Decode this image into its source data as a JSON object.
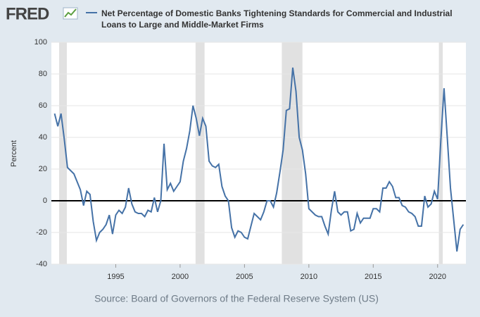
{
  "logo": "FRED",
  "chart_data": {
    "type": "line",
    "title": "Net Percentage of Domestic Banks Tightening Standards for Commercial and Industrial Loans to Large and Middle-Market Firms",
    "ylabel": "Percent",
    "source": "Source: Board of Governors of the Federal Reserve System (US)",
    "xlim": [
      1990,
      2022.2
    ],
    "xticks": [
      1995,
      2000,
      2005,
      2010,
      2015,
      2020
    ],
    "ylim": [
      -40,
      100
    ],
    "yticks": [
      -40,
      -20,
      0,
      20,
      40,
      60,
      80,
      100
    ],
    "grid": true,
    "recessions": [
      [
        1990.6,
        1991.2
      ],
      [
        2001.2,
        2001.9
      ],
      [
        2007.9,
        2009.5
      ],
      [
        2020.1,
        2020.4
      ]
    ],
    "x": [
      1990.25,
      1990.5,
      1990.75,
      1991,
      1991.25,
      1991.5,
      1991.75,
      1992,
      1992.25,
      1992.5,
      1992.75,
      1993,
      1993.25,
      1993.5,
      1993.75,
      1994,
      1994.25,
      1994.5,
      1994.75,
      1995,
      1995.25,
      1995.5,
      1995.75,
      1996,
      1996.25,
      1996.5,
      1996.75,
      1997,
      1997.25,
      1997.5,
      1997.75,
      1998,
      1998.25,
      1998.5,
      1998.75,
      1999,
      1999.25,
      1999.5,
      1999.75,
      2000,
      2000.25,
      2000.5,
      2000.75,
      2001,
      2001.25,
      2001.5,
      2001.75,
      2002,
      2002.25,
      2002.5,
      2002.75,
      2003,
      2003.25,
      2003.5,
      2003.75,
      2004,
      2004.25,
      2004.5,
      2004.75,
      2005,
      2005.25,
      2005.5,
      2005.75,
      2006,
      2006.25,
      2006.5,
      2006.75,
      2007,
      2007.25,
      2007.5,
      2007.75,
      2008,
      2008.25,
      2008.5,
      2008.75,
      2009,
      2009.25,
      2009.5,
      2009.75,
      2010,
      2010.25,
      2010.5,
      2010.75,
      2011,
      2011.25,
      2011.5,
      2011.75,
      2012,
      2012.25,
      2012.5,
      2012.75,
      2013,
      2013.25,
      2013.5,
      2013.75,
      2014,
      2014.25,
      2014.5,
      2014.75,
      2015,
      2015.25,
      2015.5,
      2015.75,
      2016,
      2016.25,
      2016.5,
      2016.75,
      2017,
      2017.25,
      2017.5,
      2017.75,
      2018,
      2018.25,
      2018.5,
      2018.75,
      2019,
      2019.25,
      2019.5,
      2019.75,
      2020,
      2020.25,
      2020.5,
      2020.75,
      2021,
      2021.25,
      2021.5,
      2021.75,
      2022
    ],
    "series": [
      {
        "name": "Net Percentage of Domestic Banks Tightening Standards for Commercial and Industrial Loans to Large and Middle-Market Firms",
        "color": "#4572a7",
        "values": [
          55,
          47,
          55,
          39,
          21,
          19,
          17,
          12,
          7,
          -3,
          6,
          4,
          -13,
          -25,
          -20,
          -18,
          -15,
          -9,
          -21,
          -9,
          -6,
          -8,
          -4,
          8,
          -2,
          -7,
          -8,
          -8,
          -10,
          -6,
          -7,
          2,
          -7,
          0,
          36,
          7,
          11,
          6,
          9,
          12,
          25,
          33,
          44,
          60,
          52,
          41,
          52,
          47,
          25,
          22,
          21,
          23,
          9,
          3,
          0,
          -17,
          -23,
          -19,
          -20,
          -23,
          -24,
          -16,
          -8,
          -10,
          -12,
          -7,
          0,
          0,
          -4,
          5,
          18,
          32,
          57,
          58,
          84,
          69,
          40,
          32,
          17,
          -5,
          -7,
          -9,
          -10,
          -10,
          -16,
          -21,
          -6,
          6,
          -7,
          -9,
          -7,
          -7,
          -19,
          -18,
          -8,
          -14,
          -11,
          -11,
          -11,
          -5,
          -5,
          -7,
          8,
          8,
          12,
          9,
          2,
          2,
          -3,
          -4,
          -7,
          -8,
          -10,
          -16,
          -16,
          3,
          -4,
          -2,
          6,
          1,
          38,
          71,
          40,
          8,
          -12,
          -32,
          -18,
          -15
        ]
      }
    ]
  }
}
